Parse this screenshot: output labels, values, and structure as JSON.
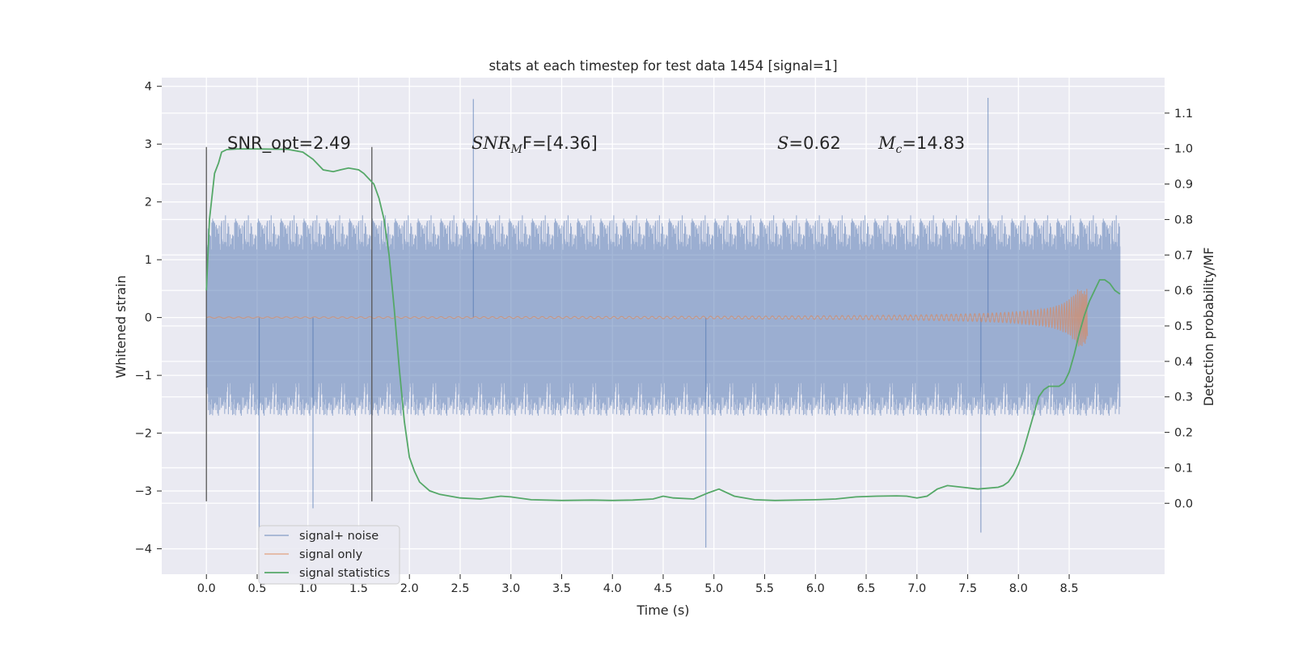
{
  "chart_data": {
    "type": "line",
    "title": "stats at each timestep for test data 1454 [signal=1]",
    "xlabel": "Time (s)",
    "ylabel": "Whitened strain",
    "ylabel_right": "Detection probability/MF",
    "xlim": [
      -0.44,
      9.44
    ],
    "ylim": [
      -4.44,
      4.15
    ],
    "ylim_right": [
      -0.2,
      1.2
    ],
    "x_ticks": [
      "0.0",
      "0.5",
      "1.0",
      "1.5",
      "2.0",
      "2.5",
      "3.0",
      "3.5",
      "4.0",
      "4.5",
      "5.0",
      "5.5",
      "6.0",
      "6.5",
      "7.0",
      "7.5",
      "8.0",
      "8.5"
    ],
    "y_ticks": [
      "4",
      "3",
      "2",
      "1",
      "0",
      "−1",
      "−2",
      "−3",
      "−4"
    ],
    "y_right_ticks": [
      "1.1",
      "1.0",
      "0.9",
      "0.8",
      "0.7",
      "0.6",
      "0.5",
      "0.4",
      "0.3",
      "0.2",
      "0.1",
      "0.0"
    ],
    "grid": true,
    "vertical_markers": [
      0.0,
      1.63
    ],
    "noise": {
      "name": "signal+ noise",
      "t_start": 0.0,
      "t_end": 9.0,
      "core_amplitude": 1.0,
      "max_peak": 3.8,
      "min_trough": -3.98,
      "color": "#4c72b0"
    },
    "signal_only": {
      "name": "signal only",
      "t_start": 0.0,
      "t_end": 8.68,
      "final_amplitude": 0.5,
      "color": "#dd8452"
    },
    "statistics": {
      "name": "signal statistics",
      "color": "#55a868",
      "t": [
        0.0,
        0.03,
        0.08,
        0.12,
        0.15,
        0.2,
        0.3,
        0.5,
        0.8,
        0.95,
        1.05,
        1.15,
        1.25,
        1.32,
        1.4,
        1.5,
        1.55,
        1.6,
        1.65,
        1.7,
        1.75,
        1.8,
        1.85,
        1.9,
        1.95,
        2.0,
        2.05,
        2.1,
        2.2,
        2.3,
        2.5,
        2.7,
        2.9,
        3.0,
        3.2,
        3.5,
        3.8,
        4.0,
        4.2,
        4.4,
        4.5,
        4.6,
        4.8,
        4.95,
        5.05,
        5.2,
        5.4,
        5.6,
        6.0,
        6.2,
        6.4,
        6.6,
        6.8,
        6.9,
        7.0,
        7.1,
        7.15,
        7.2,
        7.3,
        7.45,
        7.6,
        7.8,
        7.85,
        7.9,
        7.95,
        8.0,
        8.05,
        8.1,
        8.15,
        8.2,
        8.25,
        8.3,
        8.35,
        8.4,
        8.45,
        8.5,
        8.55,
        8.6,
        8.65,
        8.7,
        8.75,
        8.8,
        8.85,
        8.9,
        8.95,
        9.0
      ],
      "p": [
        0.6,
        0.8,
        0.93,
        0.96,
        0.99,
        0.997,
        0.999,
        0.999,
        0.998,
        0.99,
        0.97,
        0.94,
        0.935,
        0.94,
        0.945,
        0.94,
        0.93,
        0.915,
        0.9,
        0.86,
        0.8,
        0.7,
        0.55,
        0.38,
        0.23,
        0.13,
        0.09,
        0.06,
        0.035,
        0.025,
        0.015,
        0.012,
        0.02,
        0.018,
        0.01,
        0.008,
        0.009,
        0.008,
        0.009,
        0.012,
        0.02,
        0.015,
        0.012,
        0.03,
        0.04,
        0.02,
        0.01,
        0.008,
        0.01,
        0.012,
        0.018,
        0.02,
        0.021,
        0.02,
        0.015,
        0.02,
        0.03,
        0.04,
        0.05,
        0.045,
        0.04,
        0.045,
        0.05,
        0.06,
        0.08,
        0.11,
        0.15,
        0.2,
        0.25,
        0.3,
        0.32,
        0.33,
        0.33,
        0.33,
        0.34,
        0.37,
        0.42,
        0.48,
        0.53,
        0.57,
        0.6,
        0.63,
        0.63,
        0.62,
        0.6,
        0.59
      ]
    },
    "annotations": {
      "snr_opt": "SNR_opt=2.49",
      "snr_mf_main": "SNR",
      "snr_mf_sub": "M",
      "snr_mf_rest": "F=[4.36]",
      "s_symbol": "S",
      "s_value": "=0.62",
      "mc_symbol": "M",
      "mc_sub": "c",
      "mc_value": "=14.83"
    },
    "legend": {
      "placement": "lower-left",
      "entries": [
        "signal+ noise",
        "signal only",
        "signal statistics"
      ]
    }
  }
}
